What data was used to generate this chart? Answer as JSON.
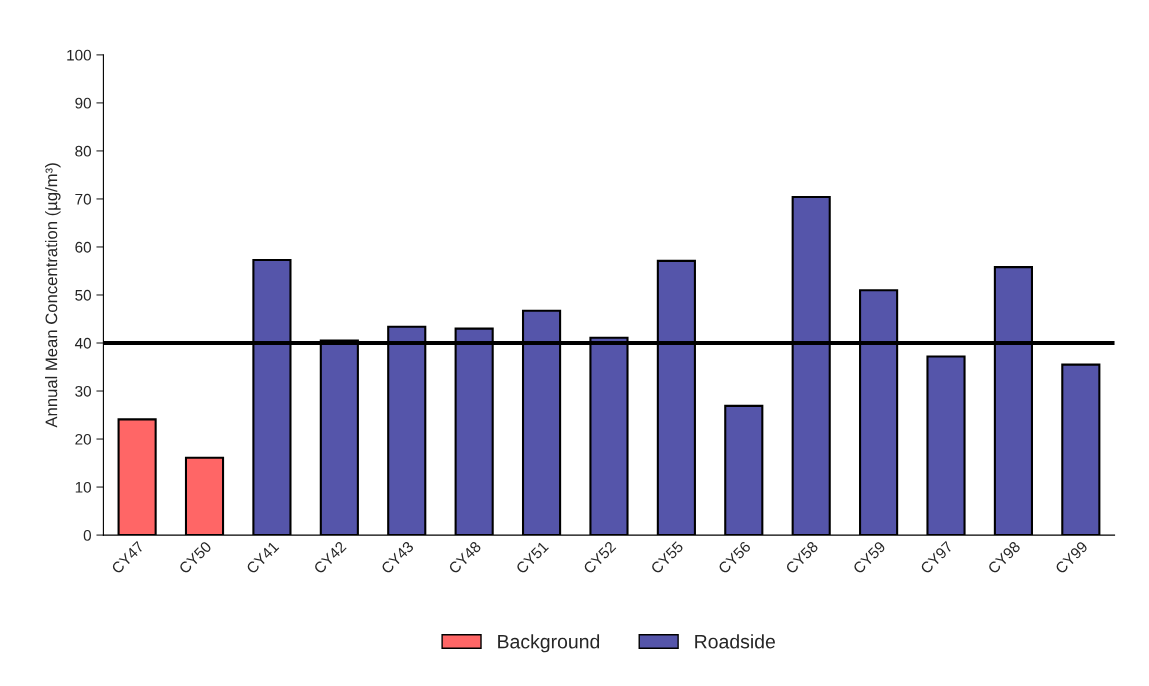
{
  "chart_data": {
    "type": "bar",
    "ylabel": "Annual Mean Concentration (µg/m³)",
    "categories": [
      "CY47",
      "CY50",
      "CY41",
      "CY42",
      "CY43",
      "CY48",
      "CY51",
      "CY52",
      "CY55",
      "CY56",
      "CY58",
      "CY59",
      "CY97",
      "CY98",
      "CY99"
    ],
    "series": [
      {
        "name": "Background",
        "color": "#ff6666",
        "values": [
          24.1,
          16.1,
          null,
          null,
          null,
          null,
          null,
          null,
          null,
          null,
          null,
          null,
          null,
          null,
          null
        ]
      },
      {
        "name": "Roadside",
        "color": "#5555aa",
        "values": [
          null,
          null,
          57.3,
          40.5,
          43.4,
          43.0,
          46.7,
          41.1,
          57.1,
          26.9,
          70.4,
          51.0,
          37.2,
          55.8,
          35.5
        ]
      }
    ],
    "ylim": [
      0,
      100
    ],
    "yticks": [
      0,
      10,
      20,
      30,
      40,
      50,
      60,
      70,
      80,
      90,
      100
    ],
    "ref_lines": [
      {
        "axis": "y",
        "value": 40,
        "color": "#000000",
        "line_style": "solid"
      }
    ],
    "grid": false,
    "legend": "bottom"
  }
}
